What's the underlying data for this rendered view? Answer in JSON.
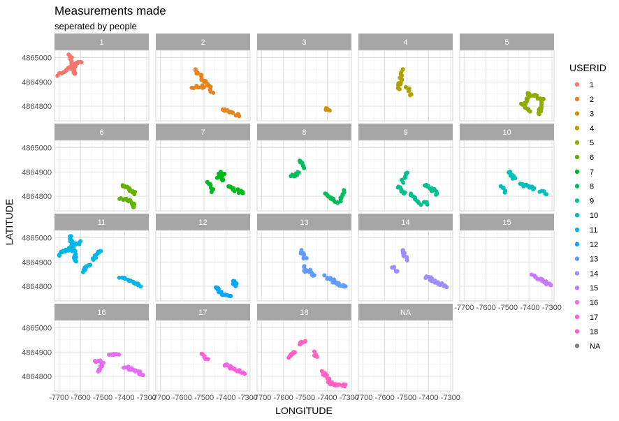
{
  "chart_data": {
    "type": "scatter",
    "title": "Measurements made",
    "subtitle": "seperated by people",
    "xlabel": "LONGITUDE",
    "ylabel": "LATITUDE",
    "xlim": [
      -7720,
      -7290
    ],
    "ylim": [
      4864740,
      4865030
    ],
    "x_ticks": [
      -7700,
      -7600,
      -7500,
      -7400,
      -7300
    ],
    "x_tick_labels": [
      "-7700",
      "-7600",
      "-7500",
      "-7400",
      "-7300"
    ],
    "y_ticks": [
      4864800,
      4864900,
      4865000
    ],
    "y_tick_labels": [
      "4864800",
      "4864900",
      "4865000"
    ],
    "grid": true,
    "legend_title": "USERID",
    "legend_position": "right",
    "facets": [
      {
        "label": "1",
        "color": "#F8766D",
        "segments": [
          [
            -7700,
            4864930,
            -7600,
            4864985
          ],
          [
            -7650,
            4865010,
            -7630,
            4864930
          ]
        ]
      },
      {
        "label": "2",
        "color": "#E7851E",
        "segments": [
          [
            -7540,
            4864950,
            -7460,
            4864860
          ],
          [
            -7550,
            4864880,
            -7490,
            4864880
          ],
          [
            -7420,
            4864790,
            -7340,
            4864760
          ]
        ]
      },
      {
        "label": "3",
        "color": "#D09400",
        "segments": [
          [
            -7410,
            4864790,
            -7390,
            4864782
          ]
        ]
      },
      {
        "label": "4",
        "color": "#B2A100",
        "segments": [
          [
            -7520,
            4864950,
            -7535,
            4864870
          ],
          [
            -7500,
            4864880,
            -7480,
            4864850
          ]
        ]
      },
      {
        "label": "5",
        "color": "#8EAB00",
        "segments": [
          [
            -7410,
            4864850,
            -7340,
            4864830
          ],
          [
            -7345,
            4864820,
            -7360,
            4864770
          ],
          [
            -7440,
            4864810,
            -7400,
            4864775
          ],
          [
            -7425,
            4864812,
            -7405,
            4864830
          ]
        ]
      },
      {
        "label": "6",
        "color": "#64B200",
        "segments": [
          [
            -7410,
            4864845,
            -7350,
            4864810
          ],
          [
            -7420,
            4864790,
            -7380,
            4864780
          ],
          [
            -7380,
            4864780,
            -7355,
            4864760
          ]
        ]
      },
      {
        "label": "7",
        "color": "#00B81B",
        "segments": [
          [
            -7430,
            4864895,
            -7410,
            4864860
          ],
          [
            -7480,
            4864860,
            -7460,
            4864820
          ],
          [
            -7390,
            4864840,
            -7320,
            4864810
          ],
          [
            -7410,
            4864895,
            -7440,
            4864880
          ]
        ]
      },
      {
        "label": "8",
        "color": "#00BD5C",
        "segments": [
          [
            -7530,
            4864950,
            -7510,
            4864920
          ],
          [
            -7560,
            4864880,
            -7530,
            4864900
          ],
          [
            -7410,
            4864810,
            -7350,
            4864770
          ],
          [
            -7320,
            4864820,
            -7340,
            4864780
          ]
        ]
      },
      {
        "label": "9",
        "color": "#00C08E",
        "segments": [
          [
            -7500,
            4864900,
            -7520,
            4864860
          ],
          [
            -7540,
            4864840,
            -7510,
            4864810
          ],
          [
            -7420,
            4864850,
            -7380,
            4864820
          ],
          [
            -7480,
            4864810,
            -7440,
            4864770
          ],
          [
            -7420,
            4864780,
            -7400,
            4864770
          ],
          [
            -7380,
            4864830,
            -7360,
            4864810
          ]
        ]
      },
      {
        "label": "10",
        "color": "#00BFB9",
        "segments": [
          [
            -7500,
            4864900,
            -7470,
            4864870
          ],
          [
            -7530,
            4864840,
            -7510,
            4864820
          ],
          [
            -7440,
            4864850,
            -7380,
            4864830
          ],
          [
            -7350,
            4864820,
            -7330,
            4864810
          ]
        ]
      },
      {
        "label": "11",
        "color": "#00B7E8",
        "segments": [
          [
            -7700,
            4864930,
            -7640,
            4864960
          ],
          [
            -7650,
            4865010,
            -7620,
            4864900
          ],
          [
            -7600,
            4864980,
            -7640,
            4864970
          ],
          [
            -7510,
            4864950,
            -7540,
            4864910
          ],
          [
            -7560,
            4864890,
            -7590,
            4864860
          ],
          [
            -7420,
            4864840,
            -7340,
            4864810
          ],
          [
            -7340,
            4864810,
            -7330,
            4864800
          ]
        ]
      },
      {
        "label": "12",
        "color": "#00A9FF",
        "segments": [
          [
            -7450,
            4864800,
            -7420,
            4864770
          ],
          [
            -7420,
            4864770,
            -7380,
            4864760
          ],
          [
            -7370,
            4864820,
            -7350,
            4864800
          ]
        ]
      },
      {
        "label": "13",
        "color": "#619CFF",
        "segments": [
          [
            -7520,
            4864950,
            -7500,
            4864910
          ],
          [
            -7510,
            4864880,
            -7500,
            4864860
          ],
          [
            -7490,
            4864870,
            -7460,
            4864840
          ],
          [
            -7410,
            4864840,
            -7350,
            4864810
          ],
          [
            -7350,
            4864810,
            -7320,
            4864800
          ]
        ]
      },
      {
        "label": "14",
        "color": "#9F8CFF",
        "segments": [
          [
            -7520,
            4864950,
            -7500,
            4864910
          ],
          [
            -7560,
            4864880,
            -7540,
            4864860
          ],
          [
            -7410,
            4864840,
            -7350,
            4864810
          ],
          [
            -7350,
            4864810,
            -7320,
            4864800
          ]
        ]
      },
      {
        "label": "15",
        "color": "#C77CFF",
        "segments": [
          [
            -7390,
            4864850,
            -7340,
            4864820
          ],
          [
            -7340,
            4864820,
            -7310,
            4864810
          ]
        ]
      },
      {
        "label": "16",
        "color": "#E76BF3",
        "segments": [
          [
            -7540,
            4864860,
            -7500,
            4864860
          ],
          [
            -7470,
            4864890,
            -7430,
            4864890
          ],
          [
            -7520,
            4864820,
            -7500,
            4864850
          ],
          [
            -7400,
            4864840,
            -7320,
            4864810
          ]
        ]
      },
      {
        "label": "17",
        "color": "#F962DD",
        "segments": [
          [
            -7510,
            4864890,
            -7480,
            4864870
          ],
          [
            -7410,
            4864850,
            -7340,
            4864820
          ],
          [
            -7340,
            4864820,
            -7320,
            4864810
          ]
        ]
      },
      {
        "label": "18",
        "color": "#FF61C3",
        "segments": [
          [
            -7500,
            4864950,
            -7530,
            4864930
          ],
          [
            -7580,
            4864880,
            -7550,
            4864900
          ],
          [
            -7460,
            4864900,
            -7450,
            4864880
          ],
          [
            -7420,
            4864820,
            -7380,
            4864770
          ],
          [
            -7380,
            4864770,
            -7320,
            4864760
          ]
        ]
      },
      {
        "label": "NA",
        "color": "#7F7F7F",
        "segments": []
      }
    ],
    "legend": [
      {
        "label": "1",
        "color": "#F8766D"
      },
      {
        "label": "2",
        "color": "#E7851E"
      },
      {
        "label": "3",
        "color": "#D09400"
      },
      {
        "label": "4",
        "color": "#B2A100"
      },
      {
        "label": "5",
        "color": "#8EAB00"
      },
      {
        "label": "6",
        "color": "#64B200"
      },
      {
        "label": "7",
        "color": "#00B81B"
      },
      {
        "label": "8",
        "color": "#00BD5C"
      },
      {
        "label": "9",
        "color": "#00C08E"
      },
      {
        "label": "10",
        "color": "#00BFB9"
      },
      {
        "label": "11",
        "color": "#00B7E8"
      },
      {
        "label": "12",
        "color": "#00A9FF"
      },
      {
        "label": "13",
        "color": "#619CFF"
      },
      {
        "label": "14",
        "color": "#9F8CFF"
      },
      {
        "label": "15",
        "color": "#C77CFF"
      },
      {
        "label": "16",
        "color": "#E76BF3"
      },
      {
        "label": "17",
        "color": "#F962DD"
      },
      {
        "label": "18",
        "color": "#FF61C3"
      },
      {
        "label": "NA",
        "color": "#7F7F7F"
      }
    ]
  }
}
